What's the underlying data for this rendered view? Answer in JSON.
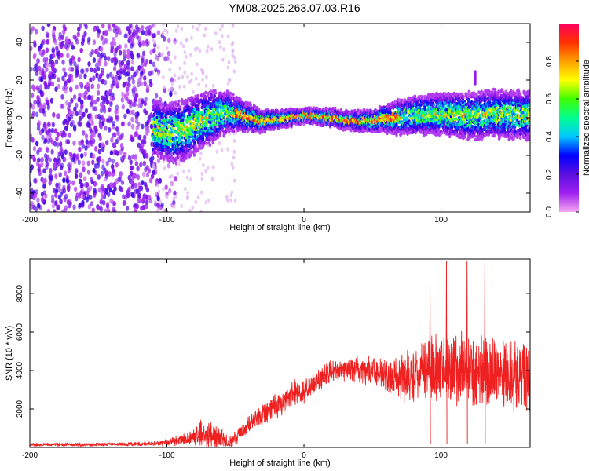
{
  "figure_title": "YM08.2025.263.07.03.R16",
  "colors": {
    "snr_line": "#ee2020",
    "frame": "#000000",
    "colorbar_stops": [
      "#f4a8f0",
      "#a020f0",
      "#5a0fe0",
      "#0000ff",
      "#00c8ff",
      "#00ff90",
      "#40ff00",
      "#ffff00",
      "#ffa000",
      "#ff3000",
      "#ff0060"
    ]
  },
  "chart_data": [
    {
      "type": "heatmap",
      "title": "",
      "xlabel": "Height of straight line (km)",
      "ylabel": "Frequency (Hz)",
      "xlim": [
        -200,
        165
      ],
      "ylim": [
        -50,
        50
      ],
      "xticks": [
        -200,
        -100,
        0,
        100
      ],
      "yticks": [
        -40,
        -20,
        0,
        20,
        40
      ],
      "colorbar": {
        "label": "Normalized spectral amplitude",
        "range": [
          0,
          1
        ],
        "ticks": [
          0.0,
          0.2,
          0.4,
          0.6,
          0.8
        ]
      },
      "regions": [
        {
          "name": "broadband noise",
          "x": [
            -200,
            -90
          ],
          "y": [
            -50,
            50
          ],
          "amplitude": 0.15
        },
        {
          "name": "sparse noise",
          "x": [
            -110,
            -50
          ],
          "y": [
            -50,
            50
          ],
          "amplitude": 0.05
        },
        {
          "name": "signal ridge",
          "x": [
            -110,
            165
          ],
          "y_center": 0,
          "amplitude": 0.75
        }
      ],
      "ridge_center_hz": {
        "x": [
          -110,
          -95,
          -85,
          -75,
          -65,
          -55,
          -45,
          -30,
          -10,
          0,
          20,
          40,
          55,
          65,
          80,
          100,
          125,
          140,
          165
        ],
        "y": [
          -6,
          -8,
          -6,
          -2,
          1,
          3,
          1,
          -2,
          0,
          1,
          0,
          -2,
          -1,
          0,
          1,
          2,
          1,
          2,
          1
        ]
      },
      "ridge_halfwidth_hz": {
        "x": [
          -110,
          -90,
          -70,
          -50,
          -30,
          0,
          50,
          70,
          100,
          130,
          165
        ],
        "y": [
          8,
          9,
          8,
          5,
          3,
          2,
          3,
          5,
          6,
          7,
          7
        ]
      }
    },
    {
      "type": "line",
      "title": "",
      "xlabel": "Height of straight line (km)",
      "ylabel": "SNR (10 * v/v)",
      "xlim": [
        -200,
        165
      ],
      "ylim": [
        0,
        9800
      ],
      "xticks": [
        -200,
        -100,
        0,
        100
      ],
      "yticks": [
        2000,
        4000,
        6000,
        8000
      ],
      "series": [
        {
          "name": "SNR",
          "envelope_x": [
            -200,
            -150,
            -110,
            -100,
            -90,
            -80,
            -72,
            -65,
            -60,
            -55,
            -50,
            -40,
            -30,
            -20,
            -10,
            0,
            10,
            20,
            40,
            60,
            80,
            100,
            120,
            140,
            165
          ],
          "envelope_mean": [
            150,
            150,
            200,
            250,
            400,
            600,
            700,
            500,
            400,
            300,
            500,
            1200,
            1700,
            2200,
            2600,
            3000,
            3500,
            4000,
            4100,
            3700,
            3800,
            4200,
            3800,
            3900,
            3600
          ],
          "envelope_spread": [
            80,
            80,
            100,
            150,
            250,
            400,
            800,
            700,
            500,
            350,
            350,
            450,
            500,
            600,
            650,
            700,
            600,
            500,
            600,
            900,
            1300,
            1600,
            1800,
            1800,
            1800
          ],
          "spikes": [
            {
              "x": 92,
              "value": 8400
            },
            {
              "x": 104,
              "value": 9700
            },
            {
              "x": 119,
              "value": 9700
            },
            {
              "x": 132,
              "value": 9700
            }
          ]
        }
      ]
    }
  ]
}
